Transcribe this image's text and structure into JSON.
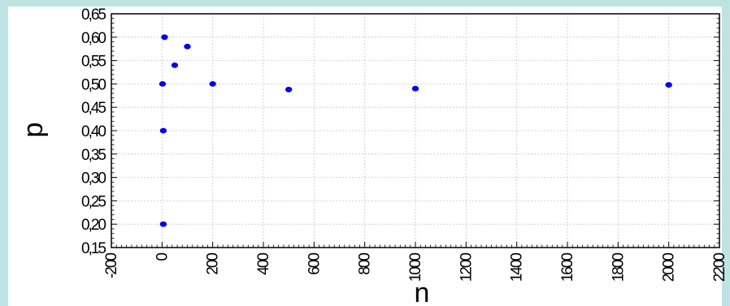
{
  "chart_data": {
    "type": "scatter",
    "title": "",
    "xlabel": "n",
    "ylabel": "p",
    "xlim": [
      -200,
      2200
    ],
    "ylim": [
      0.15,
      0.65
    ],
    "xticks": [
      -200,
      0,
      200,
      400,
      600,
      800,
      1000,
      1200,
      1400,
      1600,
      1800,
      2000,
      2200
    ],
    "xtick_labels": [
      "-200",
      "0",
      "200",
      "400",
      "600",
      "800",
      "1000",
      "1200",
      "1400",
      "1600",
      "1800",
      "2000",
      "2200"
    ],
    "yticks": [
      0.15,
      0.2,
      0.25,
      0.3,
      0.35,
      0.4,
      0.45,
      0.5,
      0.55,
      0.6,
      0.65
    ],
    "ytick_labels": [
      "0,15",
      "0,20",
      "0,25",
      "0,30",
      "0,35",
      "0,40",
      "0,45",
      "0,50",
      "0,55",
      "0,60",
      "0,65"
    ],
    "grid": true,
    "point_color": "#0000ee",
    "points": [
      {
        "x": 2,
        "y": 0.5
      },
      {
        "x": 5,
        "y": 0.2
      },
      {
        "x": 5,
        "y": 0.4
      },
      {
        "x": 10,
        "y": 0.6
      },
      {
        "x": 50,
        "y": 0.54
      },
      {
        "x": 100,
        "y": 0.58
      },
      {
        "x": 200,
        "y": 0.5
      },
      {
        "x": 500,
        "y": 0.488
      },
      {
        "x": 1000,
        "y": 0.49
      },
      {
        "x": 2000,
        "y": 0.498
      }
    ]
  }
}
